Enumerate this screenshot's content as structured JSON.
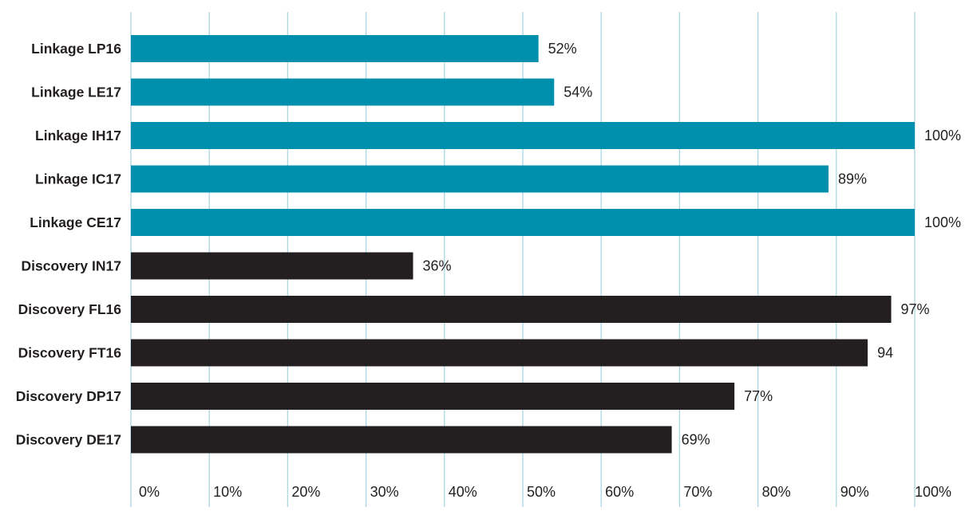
{
  "chart_data": {
    "type": "bar",
    "orientation": "horizontal",
    "title": "",
    "xlabel": "",
    "ylabel": "",
    "xlim": [
      0,
      100
    ],
    "grid": true,
    "categories": [
      "Linkage LP16",
      "Linkage LE17",
      "Linkage IH17",
      "Linkage IC17",
      "Linkage CE17",
      "Discovery IN17",
      "Discovery FL16",
      "Discovery FT16",
      "Discovery DP17",
      "Discovery DE17"
    ],
    "values": [
      52,
      54,
      100,
      89,
      100,
      36,
      97,
      94,
      77,
      69
    ],
    "data_labels": [
      "52%",
      "54%",
      "100%",
      "89%",
      "100%",
      "36%",
      "97%",
      "94",
      "77%",
      "69%"
    ],
    "groups": [
      "Linkage",
      "Linkage",
      "Linkage",
      "Linkage",
      "Linkage",
      "Discovery",
      "Discovery",
      "Discovery",
      "Discovery",
      "Discovery"
    ],
    "x_ticks": [
      "0%",
      "10%",
      "20%",
      "30%",
      "40%",
      "50%",
      "60%",
      "70%",
      "80%",
      "90%",
      "100%"
    ],
    "colors": {
      "Linkage": "#008fad",
      "Discovery": "#231f20",
      "grid": "#a9d6e2",
      "text": "#231f20"
    }
  }
}
